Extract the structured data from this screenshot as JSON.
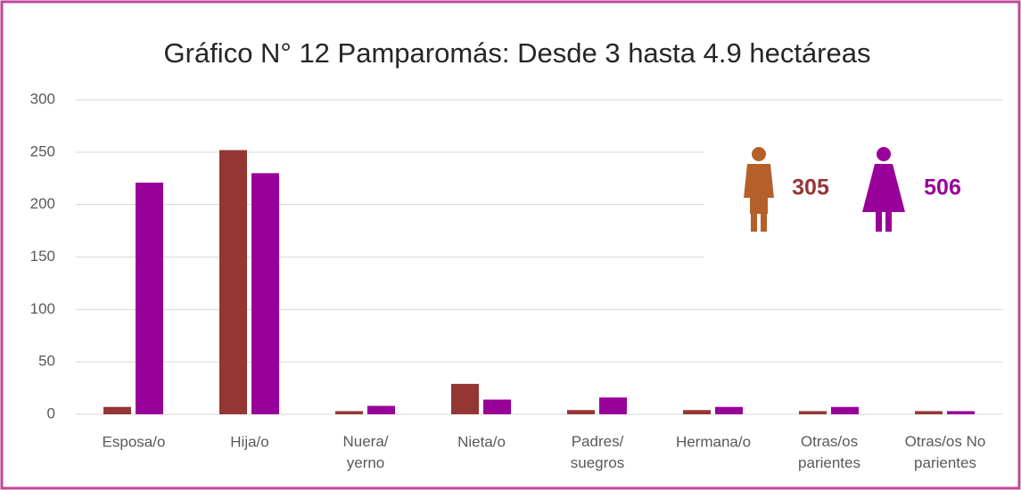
{
  "chart_data": {
    "type": "bar",
    "title": "Gráfico N° 12 Pamparomás: Desde 3 hasta 4.9 hectáreas",
    "categories": [
      "Esposa/o",
      "Hija/o",
      "Nuera/\nyerno",
      "Nieta/o",
      "Padres/\nsuegros",
      "Hermana/o",
      "Otras/os\nparientes",
      "Otras/os No\nparientes"
    ],
    "series": [
      {
        "color": "#943634",
        "values": [
          7,
          252,
          3,
          29,
          4,
          4,
          3,
          3
        ]
      },
      {
        "color": "#990099",
        "values": [
          221,
          230,
          8,
          14,
          16,
          7,
          7,
          3
        ]
      }
    ],
    "ylim": [
      0,
      300
    ],
    "yticks": [
      0,
      50,
      100,
      150,
      200,
      250,
      300
    ],
    "grid": true,
    "annotations": [
      {
        "text": "305",
        "color": "#943634",
        "icon": "male",
        "icon_color": "#b5602a"
      },
      {
        "text": "506",
        "color": "#990099",
        "icon": "female",
        "icon_color": "#990099"
      }
    ]
  }
}
